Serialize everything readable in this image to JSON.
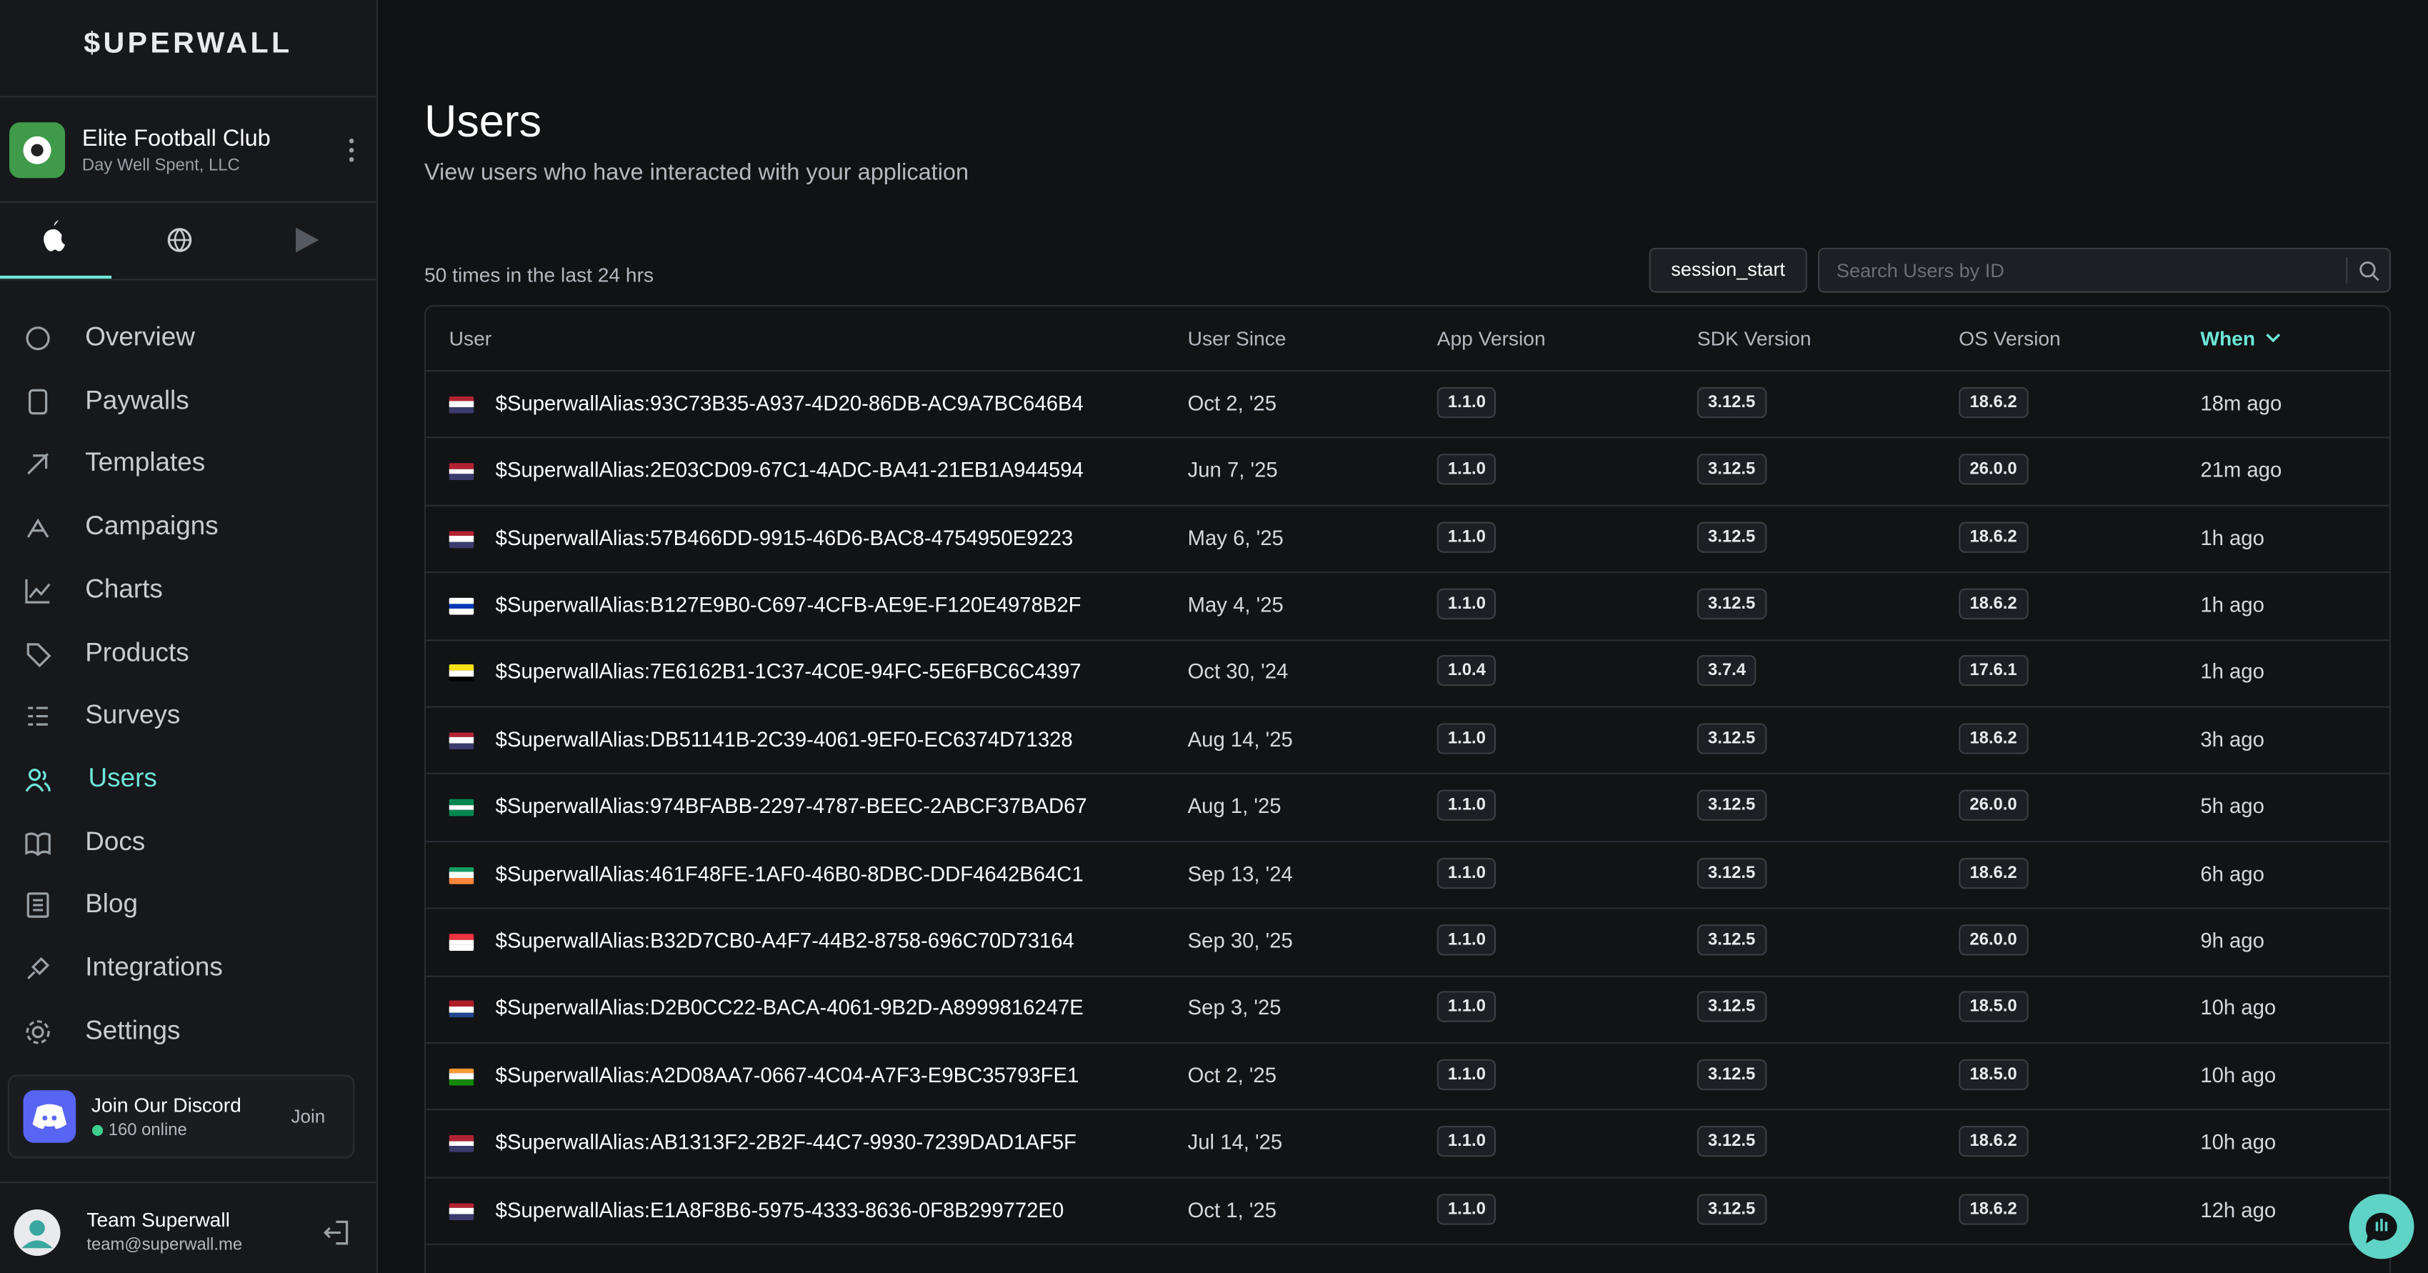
{
  "brand": "$UPERWALL",
  "app": {
    "name": "Elite Football Club",
    "org": "Day Well Spent, LLC"
  },
  "nav": [
    "Overview",
    "Paywalls",
    "Templates",
    "Campaigns",
    "Charts",
    "Products",
    "Surveys",
    "Users",
    "Docs",
    "Blog",
    "Integrations",
    "Settings"
  ],
  "nav_active": 7,
  "discord": {
    "title": "Join Our Discord",
    "online": "160 online",
    "button": "Join"
  },
  "account": {
    "name": "Team Superwall",
    "email": "team@superwall.me"
  },
  "header": {
    "title": "Users",
    "subtitle": "View users who have interacted with your application"
  },
  "count": "50 times in the last 24 hrs",
  "event": "session_start",
  "search_placeholder": "Search Users by ID",
  "table": {
    "columns": [
      "User",
      "User Since",
      "App Version",
      "SDK Version",
      "OS Version",
      "When"
    ],
    "rows": [
      [
        "$SuperwallAlias:93C73B35-A937-4D20-86DB-AC9A7BC646B4",
        "Oct 2, '25",
        "1.1.0",
        "3.12.5",
        "18.6.2",
        "18m ago"
      ],
      [
        "$SuperwallAlias:2E03CD09-67C1-4ADC-BA41-21EB1A944594",
        "Jun 7, '25",
        "1.1.0",
        "3.12.5",
        "26.0.0",
        "21m ago"
      ],
      [
        "$SuperwallAlias:57B466DD-9915-46D6-BAC8-4754950E9223",
        "May 6, '25",
        "1.1.0",
        "3.12.5",
        "18.6.2",
        "1h ago"
      ],
      [
        "$SuperwallAlias:B127E9B0-C697-4CFB-AE9E-F120E4978B2F",
        "May 4, '25",
        "1.1.0",
        "3.12.5",
        "18.6.2",
        "1h ago"
      ],
      [
        "$SuperwallAlias:7E6162B1-1C37-4C0E-94FC-5E6FBC6C4397",
        "Oct 30, '24",
        "1.0.4",
        "3.7.4",
        "17.6.1",
        "1h ago"
      ],
      [
        "$SuperwallAlias:DB51141B-2C39-4061-9EF0-EC6374D71328",
        "Aug 14, '25",
        "1.1.0",
        "3.12.5",
        "18.6.2",
        "3h ago"
      ],
      [
        "$SuperwallAlias:974BFABB-2297-4787-BEEC-2ABCF37BAD67",
        "Aug 1, '25",
        "1.1.0",
        "3.12.5",
        "26.0.0",
        "5h ago"
      ],
      [
        "$SuperwallAlias:461F48FE-1AF0-46B0-8DBC-DDF4642B64C1",
        "Sep 13, '24",
        "1.1.0",
        "3.12.5",
        "18.6.2",
        "6h ago"
      ],
      [
        "$SuperwallAlias:B32D7CB0-A4F7-44B2-8758-696C70D73164",
        "Sep 30, '25",
        "1.1.0",
        "3.12.5",
        "26.0.0",
        "9h ago"
      ],
      [
        "$SuperwallAlias:D2B0CC22-BACA-4061-9B2D-A8999816247E",
        "Sep 3, '25",
        "1.1.0",
        "3.12.5",
        "18.5.0",
        "10h ago"
      ],
      [
        "$SuperwallAlias:A2D08AA7-0667-4C04-A7F3-E9BC35793FE1",
        "Oct 2, '25",
        "1.1.0",
        "3.12.5",
        "18.5.0",
        "10h ago"
      ],
      [
        "$SuperwallAlias:AB1313F2-2B2F-44C7-9930-7239DAD1AF5F",
        "Jul 14, '25",
        "1.1.0",
        "3.12.5",
        "18.6.2",
        "10h ago"
      ],
      [
        "$SuperwallAlias:E1A8F8B6-5975-4333-8636-0F8B299772E0",
        "Oct 1, '25",
        "1.1.0",
        "3.12.5",
        "18.6.2",
        "12h ago"
      ]
    ],
    "flags": [
      [
        "#b22234",
        "#ffffff",
        "#3c3b6e"
      ],
      [
        "#b22234",
        "#ffffff",
        "#3c3b6e"
      ],
      [
        "#b22234",
        "#ffffff",
        "#3c3b6e"
      ],
      [
        "#ffffff",
        "#0038b8",
        "#ffffff"
      ],
      [
        "#f7e017",
        "#ffffff",
        "#000000"
      ],
      [
        "#b22234",
        "#ffffff",
        "#3c3b6e"
      ],
      [
        "#008751",
        "#ffffff",
        "#008751"
      ],
      [
        "#169b62",
        "#ffffff",
        "#ff883e"
      ],
      [
        "#ef3340",
        "#ffffff",
        "#ffffff"
      ],
      [
        "#ae1c28",
        "#ffffff",
        "#21468b"
      ],
      [
        "#ff9933",
        "#ffffff",
        "#138808"
      ],
      [
        "#b22234",
        "#ffffff",
        "#3c3b6e"
      ],
      [
        "#b22234",
        "#ffffff",
        "#3c3b6e"
      ]
    ]
  }
}
